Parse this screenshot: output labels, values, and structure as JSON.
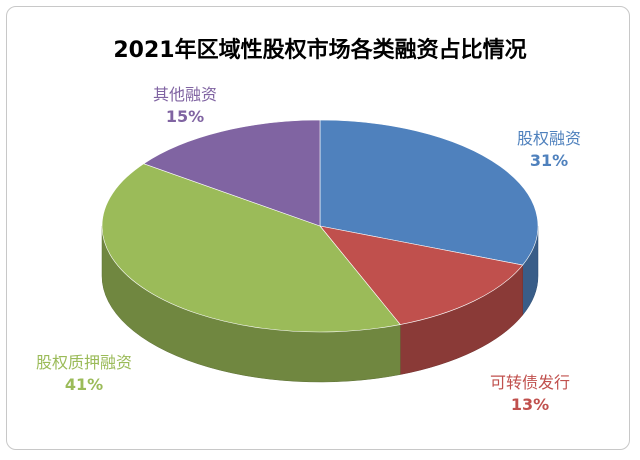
{
  "chart_data": {
    "type": "pie",
    "style": "3d",
    "title": "2021年区域性股权市场各类融资占比情况",
    "categories": [
      "股权融资",
      "可转债发行",
      "股权质押融资",
      "其他融资"
    ],
    "values": [
      31,
      13,
      41,
      15
    ],
    "labels": [
      "31%",
      "13%",
      "41%",
      "15%"
    ],
    "colors": [
      "#4f81bd",
      "#c0504d",
      "#9bbb59",
      "#8064a2"
    ],
    "label_colors": [
      "#4f81bd",
      "#c0504d",
      "#9bbb59",
      "#8064a2"
    ]
  }
}
